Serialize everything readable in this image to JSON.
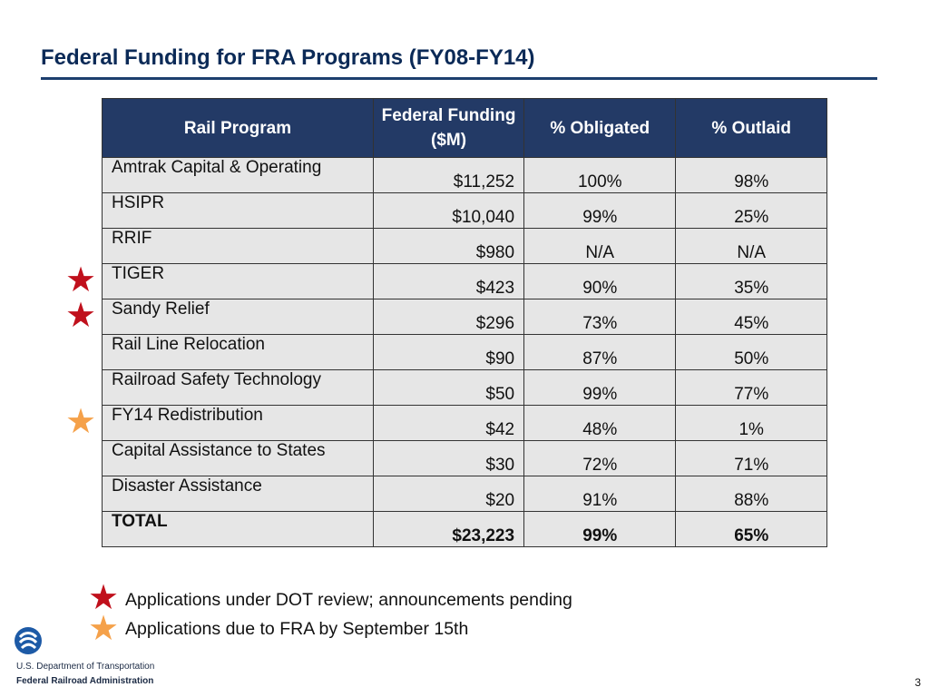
{
  "slide": {
    "title": "Federal Funding for FRA Programs (FY08-FY14)",
    "page_number": "3"
  },
  "table": {
    "headers": [
      "Rail Program",
      "Federal Funding ($M)",
      "% Obligated",
      "% Outlaid"
    ],
    "rows": [
      {
        "program": "Amtrak Capital & Operating",
        "funding": "$11,252",
        "obligated": "100%",
        "outlaid": "98%",
        "marker": ""
      },
      {
        "program": "HSIPR",
        "funding": "$10,040",
        "obligated": "99%",
        "outlaid": "25%",
        "marker": ""
      },
      {
        "program": "RRIF",
        "funding": "$980",
        "obligated": "N/A",
        "outlaid": "N/A",
        "marker": ""
      },
      {
        "program": "TIGER",
        "funding": "$423",
        "obligated": "90%",
        "outlaid": "35%",
        "marker": "red-star"
      },
      {
        "program": "Sandy Relief",
        "funding": "$296",
        "obligated": "73%",
        "outlaid": "45%",
        "marker": "red-star"
      },
      {
        "program": "Rail Line Relocation",
        "funding": "$90",
        "obligated": "87%",
        "outlaid": "50%",
        "marker": ""
      },
      {
        "program": "Railroad Safety Technology",
        "funding": "$50",
        "obligated": "99%",
        "outlaid": "77%",
        "marker": ""
      },
      {
        "program": "FY14 Redistribution",
        "funding": "$42",
        "obligated": "48%",
        "outlaid": "1%",
        "marker": "orange-star"
      },
      {
        "program": "Capital Assistance to States",
        "funding": "$30",
        "obligated": "72%",
        "outlaid": "71%",
        "marker": ""
      },
      {
        "program": "Disaster Assistance",
        "funding": "$20",
        "obligated": "91%",
        "outlaid": "88%",
        "marker": ""
      }
    ],
    "total": {
      "program": "TOTAL",
      "funding": "$23,223",
      "obligated": "99%",
      "outlaid": "65%"
    }
  },
  "legend": [
    {
      "icon": "red-star",
      "text": "Applications under DOT review; announcements pending"
    },
    {
      "icon": "orange-star",
      "text": "Applications due to FRA by September 15th"
    }
  ],
  "footer": {
    "dept": "U.S. Department of Transportation",
    "agency": "Federal Railroad Administration"
  },
  "colors": {
    "header_bg": "#233a66",
    "cell_bg": "#e6e6e6",
    "red_star": "#c0101c",
    "orange_star": "#f5a14a",
    "title": "#0b2a57"
  }
}
